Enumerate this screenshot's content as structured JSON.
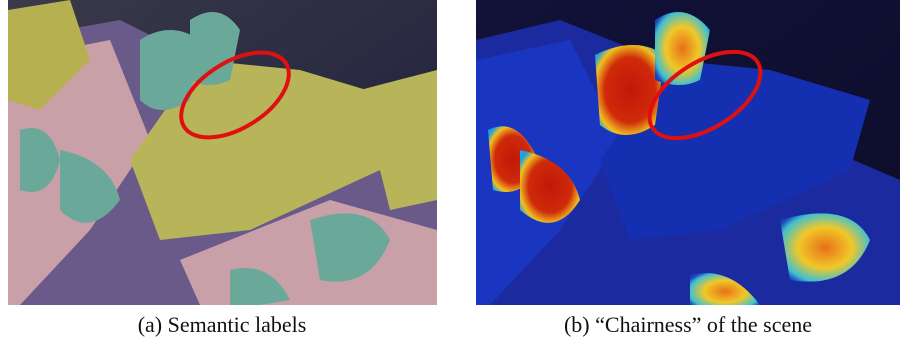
{
  "figure": {
    "panels": [
      {
        "caption": "(a) Semantic labels"
      },
      {
        "caption": "(b) “Chairness” of the scene"
      }
    ]
  }
}
